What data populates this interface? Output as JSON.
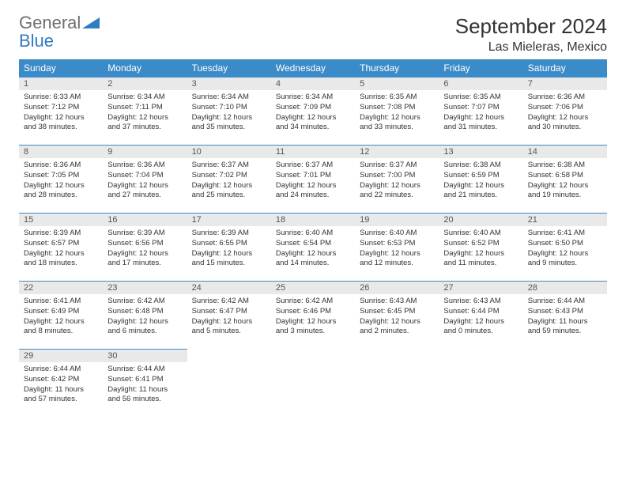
{
  "logo": {
    "text1": "General",
    "text2": "Blue"
  },
  "title": "September 2024",
  "location": "Las Mieleras, Mexico",
  "colors": {
    "header_bg": "#3b8bc9",
    "header_text": "#ffffff",
    "daynum_bg": "#e9e9e9",
    "cell_border": "#3b8bc9",
    "logo_gray": "#6f6f6f",
    "logo_blue": "#2f7cc0"
  },
  "weekdays": [
    "Sunday",
    "Monday",
    "Tuesday",
    "Wednesday",
    "Thursday",
    "Friday",
    "Saturday"
  ],
  "weeks": [
    [
      {
        "day": "1",
        "sunrise": "Sunrise: 6:33 AM",
        "sunset": "Sunset: 7:12 PM",
        "daylight1": "Daylight: 12 hours",
        "daylight2": "and 38 minutes."
      },
      {
        "day": "2",
        "sunrise": "Sunrise: 6:34 AM",
        "sunset": "Sunset: 7:11 PM",
        "daylight1": "Daylight: 12 hours",
        "daylight2": "and 37 minutes."
      },
      {
        "day": "3",
        "sunrise": "Sunrise: 6:34 AM",
        "sunset": "Sunset: 7:10 PM",
        "daylight1": "Daylight: 12 hours",
        "daylight2": "and 35 minutes."
      },
      {
        "day": "4",
        "sunrise": "Sunrise: 6:34 AM",
        "sunset": "Sunset: 7:09 PM",
        "daylight1": "Daylight: 12 hours",
        "daylight2": "and 34 minutes."
      },
      {
        "day": "5",
        "sunrise": "Sunrise: 6:35 AM",
        "sunset": "Sunset: 7:08 PM",
        "daylight1": "Daylight: 12 hours",
        "daylight2": "and 33 minutes."
      },
      {
        "day": "6",
        "sunrise": "Sunrise: 6:35 AM",
        "sunset": "Sunset: 7:07 PM",
        "daylight1": "Daylight: 12 hours",
        "daylight2": "and 31 minutes."
      },
      {
        "day": "7",
        "sunrise": "Sunrise: 6:36 AM",
        "sunset": "Sunset: 7:06 PM",
        "daylight1": "Daylight: 12 hours",
        "daylight2": "and 30 minutes."
      }
    ],
    [
      {
        "day": "8",
        "sunrise": "Sunrise: 6:36 AM",
        "sunset": "Sunset: 7:05 PM",
        "daylight1": "Daylight: 12 hours",
        "daylight2": "and 28 minutes."
      },
      {
        "day": "9",
        "sunrise": "Sunrise: 6:36 AM",
        "sunset": "Sunset: 7:04 PM",
        "daylight1": "Daylight: 12 hours",
        "daylight2": "and 27 minutes."
      },
      {
        "day": "10",
        "sunrise": "Sunrise: 6:37 AM",
        "sunset": "Sunset: 7:02 PM",
        "daylight1": "Daylight: 12 hours",
        "daylight2": "and 25 minutes."
      },
      {
        "day": "11",
        "sunrise": "Sunrise: 6:37 AM",
        "sunset": "Sunset: 7:01 PM",
        "daylight1": "Daylight: 12 hours",
        "daylight2": "and 24 minutes."
      },
      {
        "day": "12",
        "sunrise": "Sunrise: 6:37 AM",
        "sunset": "Sunset: 7:00 PM",
        "daylight1": "Daylight: 12 hours",
        "daylight2": "and 22 minutes."
      },
      {
        "day": "13",
        "sunrise": "Sunrise: 6:38 AM",
        "sunset": "Sunset: 6:59 PM",
        "daylight1": "Daylight: 12 hours",
        "daylight2": "and 21 minutes."
      },
      {
        "day": "14",
        "sunrise": "Sunrise: 6:38 AM",
        "sunset": "Sunset: 6:58 PM",
        "daylight1": "Daylight: 12 hours",
        "daylight2": "and 19 minutes."
      }
    ],
    [
      {
        "day": "15",
        "sunrise": "Sunrise: 6:39 AM",
        "sunset": "Sunset: 6:57 PM",
        "daylight1": "Daylight: 12 hours",
        "daylight2": "and 18 minutes."
      },
      {
        "day": "16",
        "sunrise": "Sunrise: 6:39 AM",
        "sunset": "Sunset: 6:56 PM",
        "daylight1": "Daylight: 12 hours",
        "daylight2": "and 17 minutes."
      },
      {
        "day": "17",
        "sunrise": "Sunrise: 6:39 AM",
        "sunset": "Sunset: 6:55 PM",
        "daylight1": "Daylight: 12 hours",
        "daylight2": "and 15 minutes."
      },
      {
        "day": "18",
        "sunrise": "Sunrise: 6:40 AM",
        "sunset": "Sunset: 6:54 PM",
        "daylight1": "Daylight: 12 hours",
        "daylight2": "and 14 minutes."
      },
      {
        "day": "19",
        "sunrise": "Sunrise: 6:40 AM",
        "sunset": "Sunset: 6:53 PM",
        "daylight1": "Daylight: 12 hours",
        "daylight2": "and 12 minutes."
      },
      {
        "day": "20",
        "sunrise": "Sunrise: 6:40 AM",
        "sunset": "Sunset: 6:52 PM",
        "daylight1": "Daylight: 12 hours",
        "daylight2": "and 11 minutes."
      },
      {
        "day": "21",
        "sunrise": "Sunrise: 6:41 AM",
        "sunset": "Sunset: 6:50 PM",
        "daylight1": "Daylight: 12 hours",
        "daylight2": "and 9 minutes."
      }
    ],
    [
      {
        "day": "22",
        "sunrise": "Sunrise: 6:41 AM",
        "sunset": "Sunset: 6:49 PM",
        "daylight1": "Daylight: 12 hours",
        "daylight2": "and 8 minutes."
      },
      {
        "day": "23",
        "sunrise": "Sunrise: 6:42 AM",
        "sunset": "Sunset: 6:48 PM",
        "daylight1": "Daylight: 12 hours",
        "daylight2": "and 6 minutes."
      },
      {
        "day": "24",
        "sunrise": "Sunrise: 6:42 AM",
        "sunset": "Sunset: 6:47 PM",
        "daylight1": "Daylight: 12 hours",
        "daylight2": "and 5 minutes."
      },
      {
        "day": "25",
        "sunrise": "Sunrise: 6:42 AM",
        "sunset": "Sunset: 6:46 PM",
        "daylight1": "Daylight: 12 hours",
        "daylight2": "and 3 minutes."
      },
      {
        "day": "26",
        "sunrise": "Sunrise: 6:43 AM",
        "sunset": "Sunset: 6:45 PM",
        "daylight1": "Daylight: 12 hours",
        "daylight2": "and 2 minutes."
      },
      {
        "day": "27",
        "sunrise": "Sunrise: 6:43 AM",
        "sunset": "Sunset: 6:44 PM",
        "daylight1": "Daylight: 12 hours",
        "daylight2": "and 0 minutes."
      },
      {
        "day": "28",
        "sunrise": "Sunrise: 6:44 AM",
        "sunset": "Sunset: 6:43 PM",
        "daylight1": "Daylight: 11 hours",
        "daylight2": "and 59 minutes."
      }
    ],
    [
      {
        "day": "29",
        "sunrise": "Sunrise: 6:44 AM",
        "sunset": "Sunset: 6:42 PM",
        "daylight1": "Daylight: 11 hours",
        "daylight2": "and 57 minutes."
      },
      {
        "day": "30",
        "sunrise": "Sunrise: 6:44 AM",
        "sunset": "Sunset: 6:41 PM",
        "daylight1": "Daylight: 11 hours",
        "daylight2": "and 56 minutes."
      },
      null,
      null,
      null,
      null,
      null
    ]
  ]
}
